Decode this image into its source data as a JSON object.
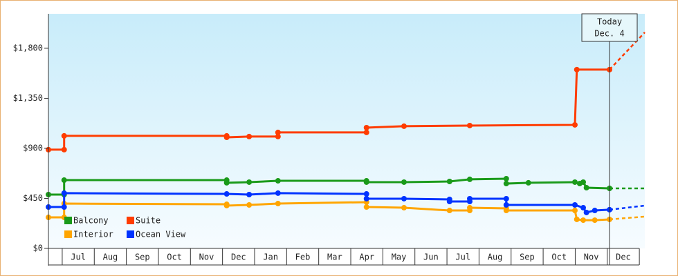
{
  "chart_data": {
    "type": "line",
    "categories": [
      "Jul",
      "Aug",
      "Sep",
      "Oct",
      "Nov",
      "Dec",
      "Jan",
      "Feb",
      "Mar",
      "Apr",
      "May",
      "Jun",
      "Jul",
      "Aug",
      "Sep",
      "Oct",
      "Nov",
      "Dec"
    ],
    "xlim": [
      -0.43,
      18.17
    ],
    "ylim": [
      0,
      2110
    ],
    "yticks": [
      {
        "value": 0,
        "label": "$0"
      },
      {
        "value": 450,
        "label": "$450"
      },
      {
        "value": 900,
        "label": "$900"
      },
      {
        "value": 1350,
        "label": "$1,350"
      },
      {
        "value": 1800,
        "label": "$1,800"
      }
    ],
    "today_x": 17.07,
    "today_annotation": [
      "Today",
      "Dec. 4"
    ],
    "series": [
      {
        "name": "Balcony",
        "color": "#1a9a1a",
        "x": [
          -0.43,
          0.06,
          0.06,
          5.13,
          5.13,
          5.83,
          6.73,
          9.49,
          9.49,
          10.66,
          12.08,
          12.71,
          13.85,
          13.85,
          14.54,
          15.99,
          16.14,
          16.25,
          16.35,
          17.07
        ],
        "values": [
          484,
          484,
          614,
          614,
          590,
          596,
          608,
          608,
          596,
          596,
          602,
          621,
          627,
          583,
          590,
          596,
          583,
          596,
          546,
          540
        ],
        "forecast": 540
      },
      {
        "name": "Suite",
        "color": "#ff3c00",
        "x": [
          -0.43,
          0.06,
          0.06,
          5.13,
          5.13,
          5.83,
          6.73,
          6.73,
          9.49,
          9.49,
          10.66,
          12.71,
          15.99,
          16.05,
          17.07
        ],
        "values": [
          888,
          888,
          1012,
          1012,
          999,
          1006,
          1006,
          1043,
          1043,
          1086,
          1099,
          1105,
          1111,
          1608,
          1608
        ],
        "forecast": 1943
      },
      {
        "name": "Interior",
        "color": "#ffa500",
        "x": [
          -0.43,
          0.06,
          0.06,
          5.13,
          5.13,
          5.83,
          6.73,
          9.49,
          9.49,
          10.66,
          12.08,
          12.71,
          12.71,
          13.85,
          13.85,
          15.99,
          16.05,
          16.25,
          16.61,
          17.07
        ],
        "values": [
          279,
          279,
          403,
          397,
          385,
          391,
          403,
          416,
          372,
          366,
          341,
          341,
          366,
          360,
          341,
          341,
          261,
          254,
          254,
          261
        ],
        "forecast": 286
      },
      {
        "name": "Ocean View",
        "color": "#0033ff",
        "x": [
          -0.43,
          0.06,
          0.06,
          5.13,
          5.83,
          6.73,
          9.49,
          9.49,
          10.66,
          12.08,
          12.08,
          12.71,
          12.71,
          13.85,
          13.85,
          15.99,
          16.25,
          16.35,
          16.61,
          17.07
        ],
        "values": [
          372,
          372,
          497,
          490,
          484,
          497,
          490,
          447,
          447,
          441,
          422,
          422,
          447,
          447,
          391,
          391,
          366,
          323,
          341,
          348
        ],
        "forecast": 385
      }
    ]
  }
}
